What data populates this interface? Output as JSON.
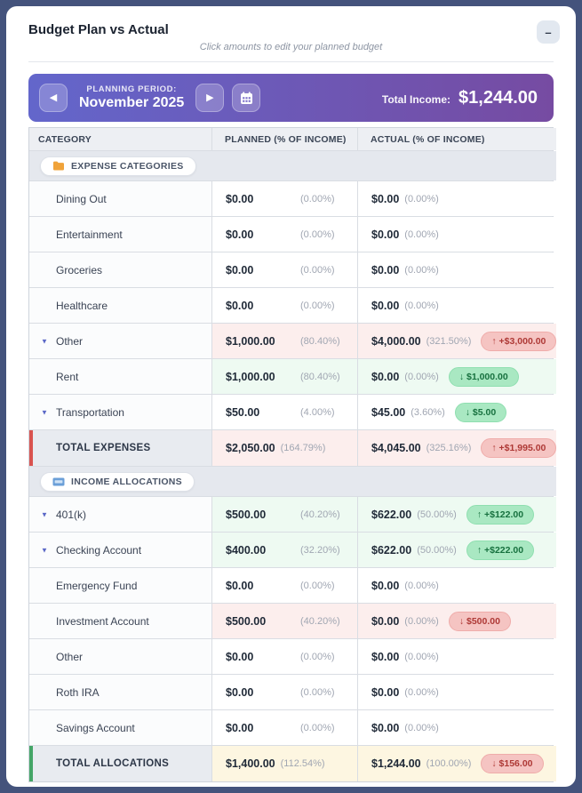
{
  "page": {
    "title": "Budget Plan vs Actual",
    "subtitle": "Click amounts to edit your planned budget",
    "minimize_label": "–"
  },
  "banner": {
    "period_label": "PLANNING PERIOD:",
    "period_value": "November 2025",
    "prev_icon": "◀",
    "next_icon": "▶",
    "total_income_label": "Total Income:",
    "total_income_value": "$1,244.00"
  },
  "colors": {
    "frame": "#44537c",
    "banner_gradient_start": "#6366cb",
    "banner_gradient_end": "#764ba2",
    "over_cell_bg": "#fceeed",
    "good_cell_bg": "#eefaf2",
    "warn_cell_bg": "#fdf6e1",
    "badge_red_bg": "#f5c4c2",
    "badge_red_text": "#ae3936",
    "badge_green_bg": "#a9e8c2",
    "badge_green_text": "#17713f",
    "total_expenses_accent": "#d9534f",
    "total_allocations_accent": "#44a567",
    "expander_color": "#5b68c7"
  },
  "table": {
    "columns": [
      "CATEGORY",
      "PLANNED (% OF INCOME)",
      "ACTUAL (% OF INCOME)"
    ],
    "rows": [
      {
        "kind": "section",
        "icon": "folder-icon",
        "label": "EXPENSE CATEGORIES"
      },
      {
        "kind": "row",
        "category": "Dining Out",
        "expandable": false,
        "planned": {
          "amount": "$0.00",
          "pct": "(0.00%)",
          "tone": "none"
        },
        "actual": {
          "amount": "$0.00",
          "pct": "(0.00%)",
          "tone": "none",
          "badge": null
        }
      },
      {
        "kind": "row",
        "category": "Entertainment",
        "expandable": false,
        "planned": {
          "amount": "$0.00",
          "pct": "(0.00%)",
          "tone": "none"
        },
        "actual": {
          "amount": "$0.00",
          "pct": "(0.00%)",
          "tone": "none",
          "badge": null
        }
      },
      {
        "kind": "row",
        "category": "Groceries",
        "expandable": false,
        "planned": {
          "amount": "$0.00",
          "pct": "(0.00%)",
          "tone": "none"
        },
        "actual": {
          "amount": "$0.00",
          "pct": "(0.00%)",
          "tone": "none",
          "badge": null
        }
      },
      {
        "kind": "row",
        "category": "Healthcare",
        "expandable": false,
        "planned": {
          "amount": "$0.00",
          "pct": "(0.00%)",
          "tone": "none"
        },
        "actual": {
          "amount": "$0.00",
          "pct": "(0.00%)",
          "tone": "none",
          "badge": null
        }
      },
      {
        "kind": "row",
        "category": "Other",
        "expandable": true,
        "planned": {
          "amount": "$1,000.00",
          "pct": "(80.40%)",
          "tone": "over"
        },
        "actual": {
          "amount": "$4,000.00",
          "pct": "(321.50%)",
          "tone": "over",
          "badge": {
            "text": "↑ +$3,000.00",
            "tone": "red"
          }
        }
      },
      {
        "kind": "row",
        "category": "Rent",
        "expandable": false,
        "planned": {
          "amount": "$1,000.00",
          "pct": "(80.40%)",
          "tone": "good"
        },
        "actual": {
          "amount": "$0.00",
          "pct": "(0.00%)",
          "tone": "good",
          "badge": {
            "text": "↓ $1,000.00",
            "tone": "green"
          }
        }
      },
      {
        "kind": "row",
        "category": "Transportation",
        "expandable": true,
        "planned": {
          "amount": "$50.00",
          "pct": "(4.00%)",
          "tone": "none"
        },
        "actual": {
          "amount": "$45.00",
          "pct": "(3.60%)",
          "tone": "none",
          "badge": {
            "text": "↓ $5.00",
            "tone": "green"
          }
        }
      },
      {
        "kind": "total",
        "category": "TOTAL EXPENSES",
        "accent": "red",
        "planned": {
          "amount": "$2,050.00",
          "pct": "(164.79%)",
          "tone": "over"
        },
        "actual": {
          "amount": "$4,045.00",
          "pct": "(325.16%)",
          "tone": "over",
          "badge": {
            "text": "↑ +$1,995.00",
            "tone": "red"
          }
        }
      },
      {
        "kind": "section",
        "icon": "card-icon",
        "label": "INCOME ALLOCATIONS"
      },
      {
        "kind": "row",
        "category": "401(k)",
        "expandable": true,
        "planned": {
          "amount": "$500.00",
          "pct": "(40.20%)",
          "tone": "good"
        },
        "actual": {
          "amount": "$622.00",
          "pct": "(50.00%)",
          "tone": "good",
          "badge": {
            "text": "↑ +$122.00",
            "tone": "green"
          }
        }
      },
      {
        "kind": "row",
        "category": "Checking Account",
        "expandable": true,
        "planned": {
          "amount": "$400.00",
          "pct": "(32.20%)",
          "tone": "good"
        },
        "actual": {
          "amount": "$622.00",
          "pct": "(50.00%)",
          "tone": "good",
          "badge": {
            "text": "↑ +$222.00",
            "tone": "green"
          }
        }
      },
      {
        "kind": "row",
        "category": "Emergency Fund",
        "expandable": false,
        "planned": {
          "amount": "$0.00",
          "pct": "(0.00%)",
          "tone": "none"
        },
        "actual": {
          "amount": "$0.00",
          "pct": "(0.00%)",
          "tone": "none",
          "badge": null
        }
      },
      {
        "kind": "row",
        "category": "Investment Account",
        "expandable": false,
        "planned": {
          "amount": "$500.00",
          "pct": "(40.20%)",
          "tone": "over"
        },
        "actual": {
          "amount": "$0.00",
          "pct": "(0.00%)",
          "tone": "over",
          "badge": {
            "text": "↓ $500.00",
            "tone": "red"
          }
        }
      },
      {
        "kind": "row",
        "category": "Other",
        "expandable": false,
        "planned": {
          "amount": "$0.00",
          "pct": "(0.00%)",
          "tone": "none"
        },
        "actual": {
          "amount": "$0.00",
          "pct": "(0.00%)",
          "tone": "none",
          "badge": null
        }
      },
      {
        "kind": "row",
        "category": "Roth IRA",
        "expandable": false,
        "planned": {
          "amount": "$0.00",
          "pct": "(0.00%)",
          "tone": "none"
        },
        "actual": {
          "amount": "$0.00",
          "pct": "(0.00%)",
          "tone": "none",
          "badge": null
        }
      },
      {
        "kind": "row",
        "category": "Savings Account",
        "expandable": false,
        "planned": {
          "amount": "$0.00",
          "pct": "(0.00%)",
          "tone": "none"
        },
        "actual": {
          "amount": "$0.00",
          "pct": "(0.00%)",
          "tone": "none",
          "badge": null
        }
      },
      {
        "kind": "total",
        "category": "TOTAL ALLOCATIONS",
        "accent": "green",
        "planned": {
          "amount": "$1,400.00",
          "pct": "(112.54%)",
          "tone": "warn"
        },
        "actual": {
          "amount": "$1,244.00",
          "pct": "(100.00%)",
          "tone": "warn",
          "badge": {
            "text": "↓ $156.00",
            "tone": "red"
          }
        }
      }
    ]
  }
}
